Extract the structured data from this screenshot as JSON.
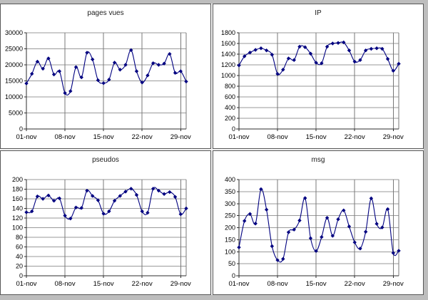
{
  "window": {
    "background": "#bdbdbd",
    "panel_background": "#ffffff",
    "panel_border_color": "#575757",
    "series_color": "#000080",
    "h_gridline_color": "#9a9a9a",
    "v_gridline_color": "#787878",
    "axis_color": "#2e2e2e",
    "tick_label_color": "#000000",
    "title_color": "#1c1c1c"
  },
  "x_axis": {
    "tick_labels": [
      "01-nov",
      "08-nov",
      "15-nov",
      "22-nov",
      "29-nov"
    ],
    "tick_day_indices": [
      0,
      7,
      14,
      21,
      28
    ],
    "num_points": 30,
    "x_start": "01-nov",
    "x_end": "30-nov"
  },
  "chart_data": [
    {
      "type": "line",
      "title": "pages vues",
      "marker": "diamond",
      "grid": true,
      "legend": "none",
      "ylim": [
        0,
        30000
      ],
      "ytick_step": 5000,
      "values": [
        14200,
        17200,
        21000,
        18800,
        22000,
        17000,
        18000,
        11200,
        11800,
        19300,
        16100,
        23800,
        21700,
        15200,
        14300,
        15400,
        20700,
        18500,
        20000,
        24600,
        18000,
        14500,
        16700,
        20500,
        20000,
        20400,
        23400,
        17500,
        18000,
        14800
      ]
    },
    {
      "type": "line",
      "title": "IP",
      "marker": "diamond",
      "grid": true,
      "legend": "none",
      "ylim": [
        0,
        1800
      ],
      "ytick_step": 200,
      "values": [
        1190,
        1360,
        1430,
        1480,
        1510,
        1470,
        1390,
        1030,
        1110,
        1320,
        1290,
        1540,
        1530,
        1410,
        1240,
        1230,
        1540,
        1600,
        1610,
        1620,
        1470,
        1260,
        1290,
        1470,
        1500,
        1510,
        1500,
        1310,
        1090,
        1220
      ]
    },
    {
      "type": "line",
      "title": "pseudos",
      "marker": "diamond",
      "grid": true,
      "legend": "none",
      "ylim": [
        0,
        200
      ],
      "ytick_step": 20,
      "values": [
        132,
        134,
        165,
        160,
        167,
        156,
        161,
        125,
        119,
        142,
        141,
        177,
        166,
        157,
        129,
        134,
        156,
        166,
        175,
        181,
        168,
        134,
        131,
        181,
        177,
        170,
        174,
        164,
        128,
        140
      ]
    },
    {
      "type": "line",
      "title": "msg",
      "marker": "diamond",
      "grid": true,
      "legend": "none",
      "ylim": [
        0,
        400
      ],
      "ytick_step": 50,
      "values": [
        118,
        228,
        257,
        217,
        360,
        275,
        123,
        65,
        70,
        181,
        192,
        230,
        323,
        156,
        103,
        161,
        241,
        166,
        235,
        272,
        205,
        139,
        113,
        183,
        322,
        216,
        201,
        277,
        95,
        104
      ]
    }
  ]
}
